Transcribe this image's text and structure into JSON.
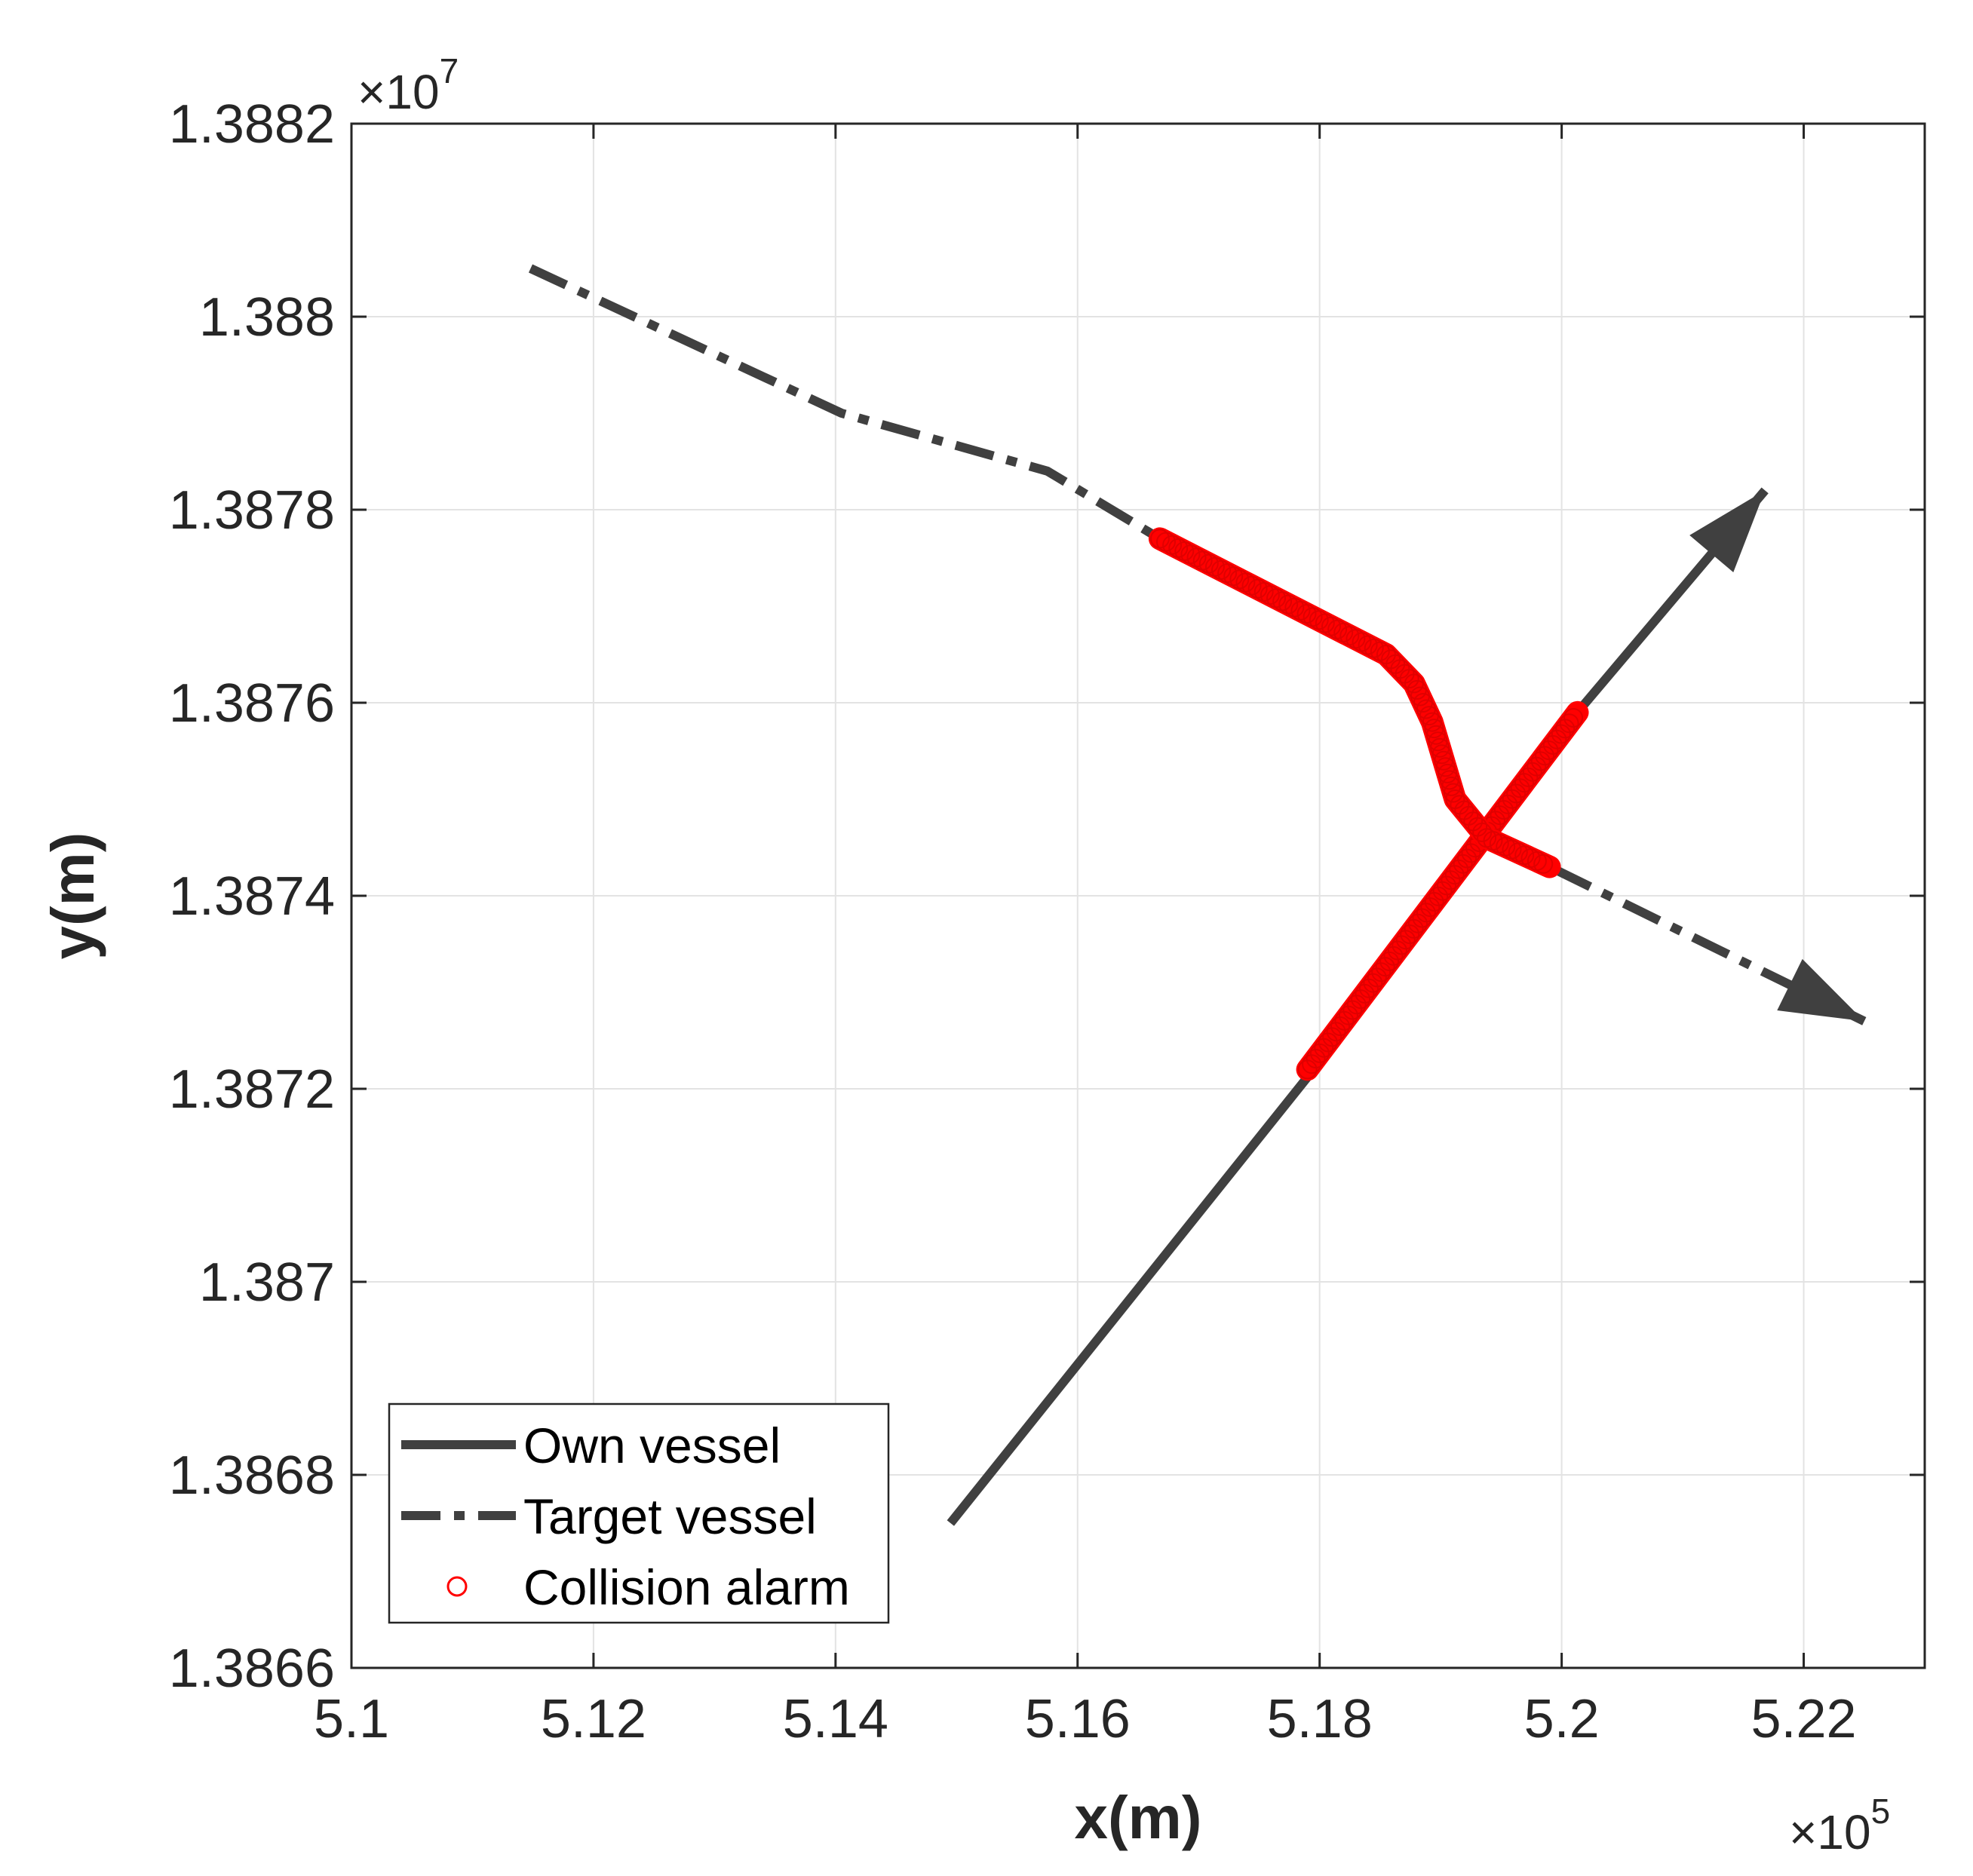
{
  "chart_data": {
    "type": "line",
    "xlabel": "x(m)",
    "ylabel": "y(m)",
    "x_multiplier": "×10",
    "x_multiplier_power": "5",
    "y_multiplier": "×10",
    "y_multiplier_power": "7",
    "xlim": [
      5.1,
      5.23
    ],
    "ylim": [
      1.3866,
      1.3882
    ],
    "xticks": [
      5.1,
      5.12,
      5.14,
      5.16,
      5.18,
      5.2,
      5.22
    ],
    "xtick_labels": [
      "5.1",
      "5.12",
      "5.14",
      "5.16",
      "5.18",
      "5.2",
      "5.22"
    ],
    "yticks": [
      1.3866,
      1.3868,
      1.387,
      1.3872,
      1.3874,
      1.3876,
      1.3878,
      1.388,
      1.3882
    ],
    "ytick_labels": [
      "1.3866",
      "1.3868",
      "1.387",
      "1.3872",
      "1.3874",
      "1.3876",
      "1.3878",
      "1.388",
      "1.3882"
    ],
    "grid": true,
    "legend_position": "bottom-left",
    "series": [
      {
        "name": "Own vessel",
        "style": "solid",
        "color": "#404040",
        "arrow_end": true,
        "x": [
          5.1495,
          5.1795,
          5.2013,
          5.2168
        ],
        "y": [
          1.38675,
          1.38722,
          1.38759,
          1.38782
        ]
      },
      {
        "name": "Target vessel",
        "style": "dashdot",
        "color": "#404040",
        "arrow_end": true,
        "x": [
          5.1148,
          5.1405,
          5.1575,
          5.1668,
          5.1855,
          5.1878,
          5.1893,
          5.1912,
          5.1938,
          5.199,
          5.225
        ],
        "y": [
          1.38805,
          1.3879,
          1.38784,
          1.38777,
          1.38765,
          1.38762,
          1.38758,
          1.3875,
          1.38746,
          1.38743,
          1.38727
        ]
      }
    ],
    "alarm_segments": [
      {
        "name": "Collision alarm",
        "color": "#ff0000",
        "on_series": "Own vessel",
        "x": [
          5.179,
          5.2013
        ],
        "y": [
          1.38722,
          1.38759
        ]
      },
      {
        "name": "Collision alarm",
        "color": "#ff0000",
        "on_series": "Target vessel",
        "x": [
          5.1668,
          5.1855,
          5.1878,
          5.1893,
          5.1912,
          5.1938,
          5.199
        ],
        "y": [
          1.38777,
          1.38765,
          1.38762,
          1.38758,
          1.3875,
          1.38746,
          1.38743
        ]
      }
    ],
    "legend": [
      {
        "label": "Own vessel",
        "style": "solid"
      },
      {
        "label": "Target vessel",
        "style": "dashdot"
      },
      {
        "label": "Collision alarm",
        "style": "marker-circle"
      }
    ]
  }
}
